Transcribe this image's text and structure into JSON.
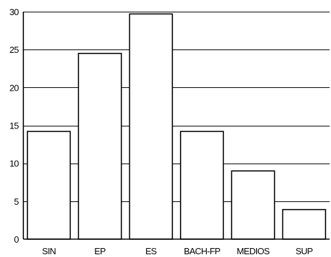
{
  "chart_data": {
    "type": "bar",
    "title": "",
    "xlabel": "",
    "ylabel": "",
    "categories": [
      "SIN",
      "EP",
      "ES",
      "BACH-FP",
      "MEDIOS",
      "SUP"
    ],
    "values": [
      14.2,
      24.5,
      29.7,
      14.2,
      9.0,
      3.9
    ],
    "ylim": [
      0,
      30
    ],
    "yticks": [
      0,
      5,
      10,
      15,
      20,
      25,
      30
    ],
    "grid": true,
    "legend": "none",
    "bar_fill": "#ffffff",
    "bar_stroke": "#000000"
  }
}
